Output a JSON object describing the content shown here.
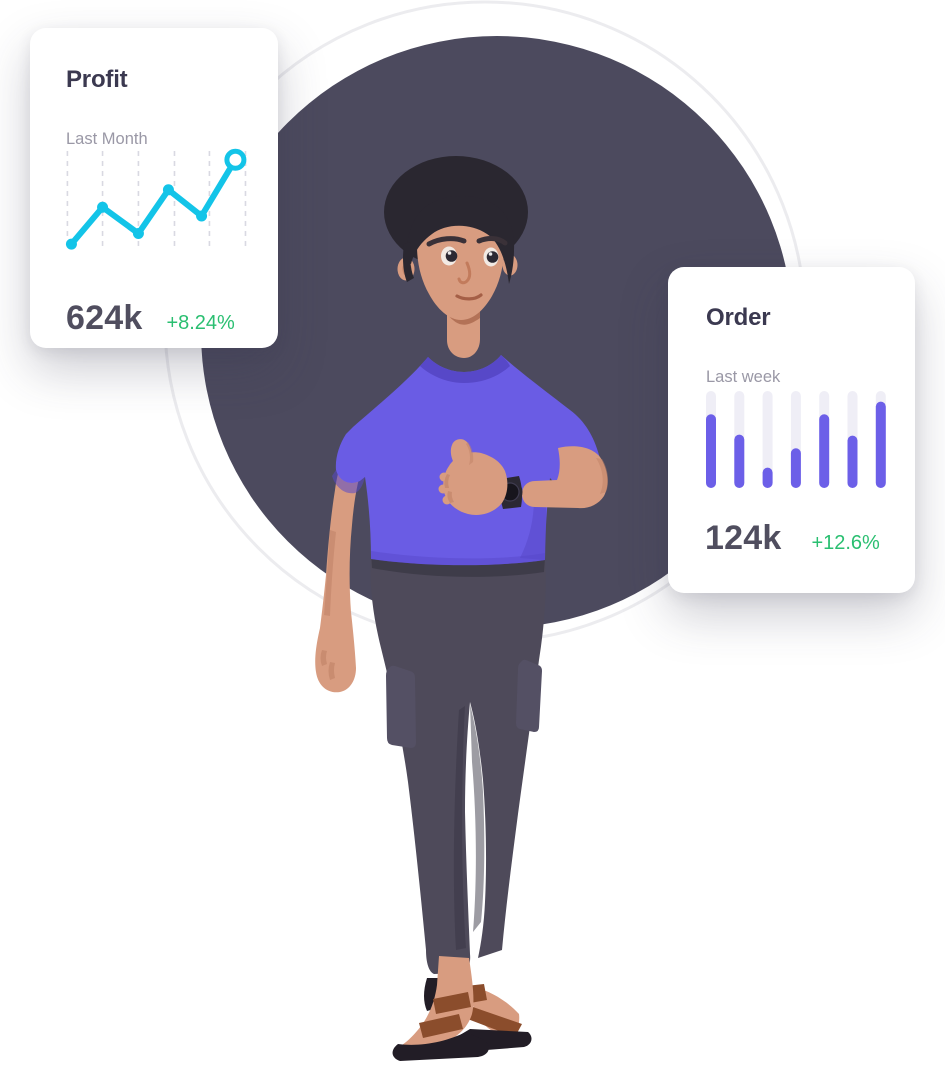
{
  "scene": {
    "background": "#FFFFFF",
    "circle_color": "#4C4A5E",
    "ring_color": "#ECECEF",
    "character": {
      "description": "3D man with dark hair, purple t-shirt, thumbs-up gesture, black wrist watch, dark gray jogger pants, brown sandals",
      "shirt_color": "#6A5CE4",
      "shirt_shadow_color": "#5748C8",
      "skin_color": "#D89C80",
      "skin_shadow_color": "#C08266",
      "skin_deep_shadow_color": "#AD6B50",
      "hair_color": "#2A2730",
      "pants_color": "#4E4A5A",
      "pants_shadow_color": "#3C3947",
      "sandal_sole_color": "#221D26",
      "sandal_strap_color": "#8B4D2C",
      "watch_color": "#2B2833"
    }
  },
  "profit_card": {
    "title": "Profit",
    "subtitle": "Last Month",
    "value": "624k",
    "delta": "+8.24%",
    "line_color": "#13C4E8",
    "grid_color": "#D9D9E2",
    "delta_color": "#2ABF71"
  },
  "order_card": {
    "title": "Order",
    "subtitle": "Last week",
    "value": "124k",
    "delta": "+12.6%",
    "bar_color": "#6C5FE8",
    "track_color": "#EFEEF6",
    "delta_color": "#2ABF71"
  },
  "chart_data": [
    {
      "type": "line",
      "title": "Profit",
      "subtitle": "Last Month",
      "summary_value": "624k",
      "summary_delta": "+8.24%",
      "values": [
        4,
        42,
        15,
        60,
        33,
        91
      ],
      "x_pct": [
        2.7,
        19.7,
        39.3,
        55.7,
        73.8,
        92.3
      ],
      "grid_x_pct": [
        0.5,
        19.7,
        39.3,
        59.0,
        78.1,
        97.8
      ],
      "ylim": [
        0,
        100
      ],
      "unit": "relative height percent (unlabeled sparkline)",
      "grid": "vertical dashed lines",
      "legend": "none",
      "line_color": "#13C4E8",
      "grid_color": "#D9D9E2",
      "last_point_style": "open-ring-marker"
    },
    {
      "type": "bar",
      "title": "Order",
      "subtitle": "Last week",
      "summary_value": "124k",
      "summary_delta": "+12.6%",
      "values": [
        76,
        55,
        21,
        41,
        76,
        54,
        89
      ],
      "ylim": [
        0,
        100
      ],
      "unit": "relative height percent (unlabeled sparkline, 7 rounded bars on full-height tracks)",
      "grid": "off",
      "legend": "none",
      "bar_color": "#6C5FE8",
      "track_color": "#EFEEF6"
    }
  ]
}
